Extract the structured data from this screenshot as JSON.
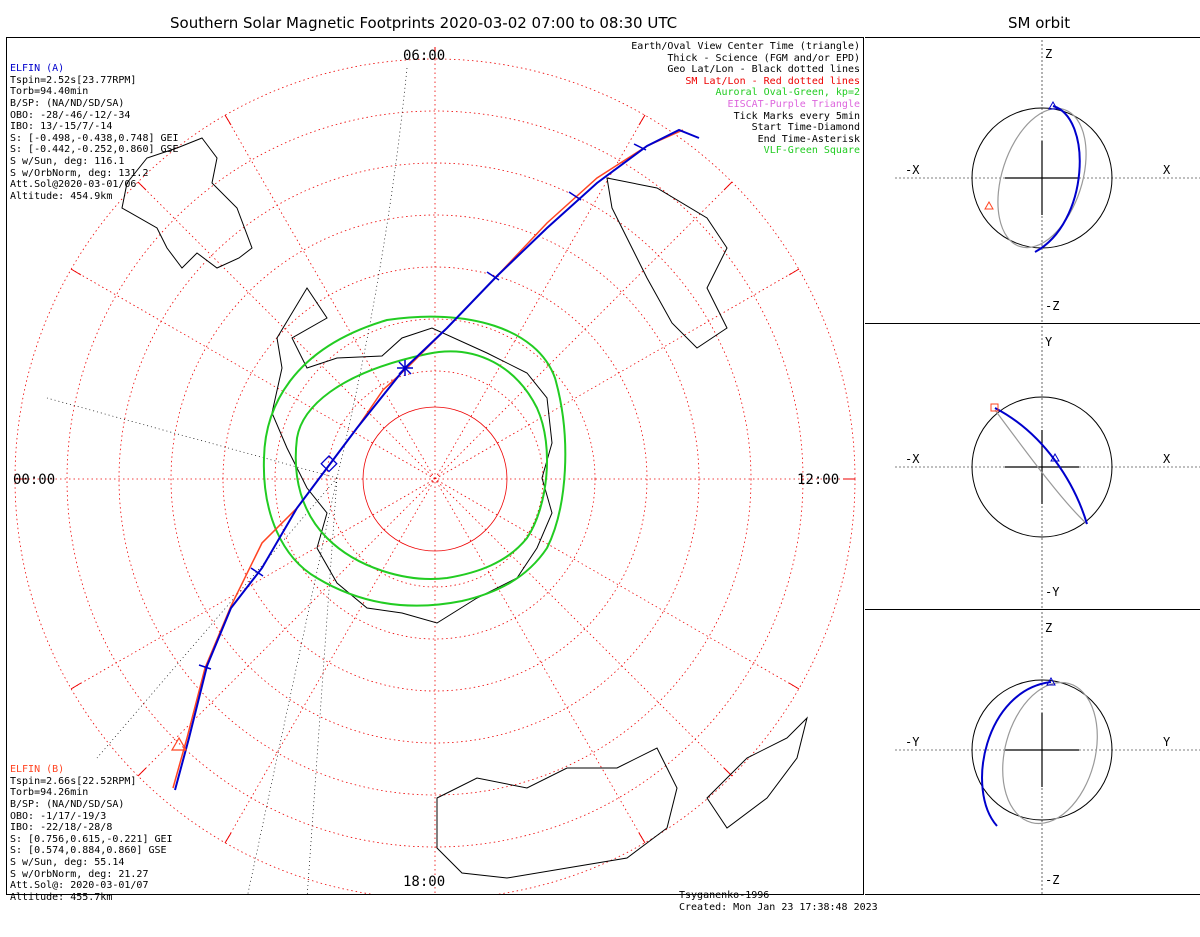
{
  "titles": {
    "main": "Southern Solar Magnetic Footprints 2020-03-02 07:00 to 08:30 UTC",
    "orbit": "SM orbit"
  },
  "map": {
    "hour_labels": {
      "top": "06:00",
      "left": "00:00",
      "right": "12:00",
      "bottom": "18:00"
    }
  },
  "elfin_a": {
    "name": "ELFIN (A)",
    "color": "#0000cc",
    "lines": [
      "Tspin=2.52s[23.77RPM]",
      "Torb=94.40min",
      "B/SP: (NA/ND/SD/SA)",
      "OBO: -28/-46/-12/-34",
      "IBO: 13/-15/7/-14",
      "S: [-0.498,-0.438,0.748] GEI",
      "S: [-0.442,-0.252,0.860] GSE",
      "S w/Sun, deg: 116.1",
      "S w/OrbNorm, deg: 131.2",
      "Att.Sol@2020-03-01/06",
      "Altitude: 454.9km"
    ]
  },
  "elfin_b": {
    "name": "ELFIN (B)",
    "color": "#ff4422",
    "lines": [
      "Tspin=2.66s[22.52RPM]",
      "Torb=94.26min",
      "B/SP: (NA/ND/SD/SA)",
      "OBO: -1/17/-19/3",
      "IBO: -22/18/-28/8",
      "S: [0.756,0.615,-0.221] GEI",
      "S: [0.574,0.884,0.860] GSE",
      "S w/Sun, deg: 55.14",
      "S w/OrbNorm, deg: 21.27",
      "Att.Sol@: 2020-03-01/07",
      "Altitude: 455.7km"
    ]
  },
  "legend": [
    {
      "text": "Earth/Oval View Center Time (triangle)",
      "color": "#000000"
    },
    {
      "text": "Thick - Science (FGM and/or EPD)",
      "color": "#000000"
    },
    {
      "text": "Geo Lat/Lon - Black dotted lines",
      "color": "#000000"
    },
    {
      "text": "SM Lat/Lon - Red dotted lines",
      "color": "#ee0000"
    },
    {
      "text": "Auroral Oval-Green, kp=2",
      "color": "#22cc22"
    },
    {
      "text": "EISCAT-Purple Triangle",
      "color": "#dd66dd"
    },
    {
      "text": "Tick Marks every 5min",
      "color": "#000000"
    },
    {
      "text": "Start Time-Diamond",
      "color": "#000000"
    },
    {
      "text": "End Time-Asterisk",
      "color": "#000000"
    },
    {
      "text": "VLF-Green Square",
      "color": "#22cc22"
    }
  ],
  "footer": {
    "model": "Tsyganenko-1996",
    "created": "Created: Mon Jan 23 17:38:48 2023"
  },
  "orbit_panels": [
    {
      "left": "-X",
      "right": "X",
      "top": "Z",
      "bottom": "-Z"
    },
    {
      "left": "-X",
      "right": "X",
      "top": "Y",
      "bottom": "-Y"
    },
    {
      "left": "-Y",
      "right": "Y",
      "top": "Z",
      "bottom": "-Z"
    }
  ],
  "colors": {
    "orbit_a": "#0000cc",
    "orbit_b": "#ff4422",
    "oval": "#22cc22",
    "sm_grid": "#ee0000",
    "geo_grid": "#000000",
    "gray_orbit": "#999999"
  }
}
